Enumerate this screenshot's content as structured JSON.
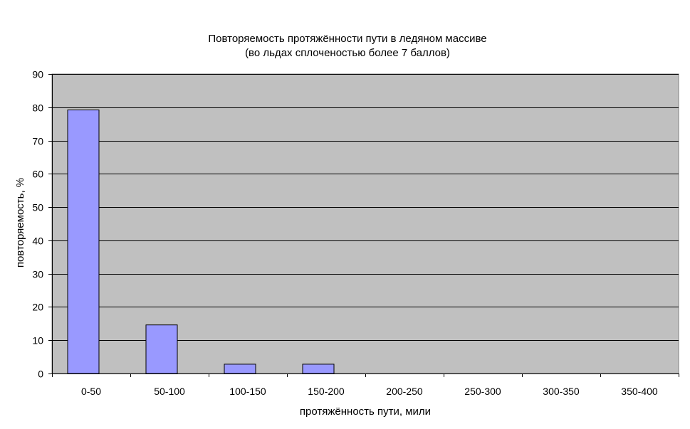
{
  "chart_data": {
    "type": "bar",
    "title": "Повторяемость протяжённости пути в ледяном массиве",
    "subtitle": "(во льдах сплоченостью более 7 баллов)",
    "xlabel": "протяжённость пути, мили",
    "ylabel": "повторяемость, %",
    "categories": [
      "0-50",
      "50-100",
      "100-150",
      "150-200",
      "200-250",
      "250-300",
      "300-350",
      "350-400"
    ],
    "series": [
      {
        "values": [
          79.2,
          14.6,
          2.8,
          2.8,
          0,
          0,
          0,
          0
        ]
      }
    ],
    "ylim": [
      0,
      90
    ],
    "yticks": [
      0,
      10,
      20,
      30,
      40,
      50,
      60,
      70,
      80,
      90
    ],
    "grid": true,
    "legend": "none",
    "colors": {
      "plot_background": "#c0c0c0",
      "bar_fill": "#9999ff",
      "bar_stroke": "#000000",
      "gridline": "#000000"
    }
  }
}
